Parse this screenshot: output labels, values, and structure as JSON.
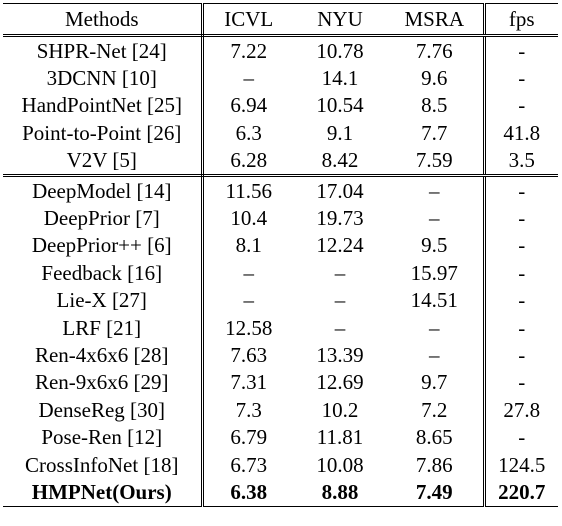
{
  "headers": {
    "method": "Methods",
    "icvl": "ICVL",
    "nyu": "NYU",
    "msra": "MSRA",
    "fps": "fps"
  },
  "group1": [
    {
      "method": "SHPR-Net [24]",
      "icvl": "7.22",
      "nyu": "10.78",
      "msra": "7.76",
      "fps": "-"
    },
    {
      "method": "3DCNN [10]",
      "icvl": "–",
      "nyu": "14.1",
      "msra": "9.6",
      "fps": "-"
    },
    {
      "method": "HandPointNet [25]",
      "icvl": "6.94",
      "nyu": "10.54",
      "msra": "8.5",
      "fps": "-"
    },
    {
      "method": "Point-to-Point [26]",
      "icvl": "6.3",
      "nyu": "9.1",
      "msra": "7.7",
      "fps": "41.8"
    },
    {
      "method": "V2V [5]",
      "icvl": "6.28",
      "nyu": "8.42",
      "msra": "7.59",
      "fps": "3.5"
    }
  ],
  "group2": [
    {
      "method": "DeepModel [14]",
      "icvl": "11.56",
      "nyu": "17.04",
      "msra": "–",
      "fps": "-"
    },
    {
      "method": "DeepPrior [7]",
      "icvl": "10.4",
      "nyu": "19.73",
      "msra": "–",
      "fps": "-"
    },
    {
      "method": "DeepPrior++ [6]",
      "icvl": "8.1",
      "nyu": "12.24",
      "msra": "9.5",
      "fps": "-"
    },
    {
      "method": "Feedback [16]",
      "icvl": "–",
      "nyu": "–",
      "msra": "15.97",
      "fps": "-"
    },
    {
      "method": "Lie-X [27]",
      "icvl": "–",
      "nyu": "–",
      "msra": "14.51",
      "fps": "-"
    },
    {
      "method": "LRF [21]",
      "icvl": "12.58",
      "nyu": "–",
      "msra": "–",
      "fps": "-"
    },
    {
      "method": "Ren-4x6x6 [28]",
      "icvl": "7.63",
      "nyu": "13.39",
      "msra": "–",
      "fps": "-"
    },
    {
      "method": "Ren-9x6x6 [29]",
      "icvl": "7.31",
      "nyu": "12.69",
      "msra": "9.7",
      "fps": "-"
    },
    {
      "method": "DenseReg [30]",
      "icvl": "7.3",
      "nyu": "10.2",
      "msra": "7.2",
      "fps": "27.8"
    },
    {
      "method": "Pose-Ren [12]",
      "icvl": "6.79",
      "nyu": "11.81",
      "msra": "8.65",
      "fps": "-"
    },
    {
      "method": "CrossInfoNet [18]",
      "icvl": "6.73",
      "nyu": "10.08",
      "msra": "7.86",
      "fps": "124.5"
    },
    {
      "method": "HMPNet(Ours)",
      "icvl": "6.38",
      "nyu": "8.88",
      "msra": "7.49",
      "fps": "220.7",
      "bold": true
    }
  ]
}
